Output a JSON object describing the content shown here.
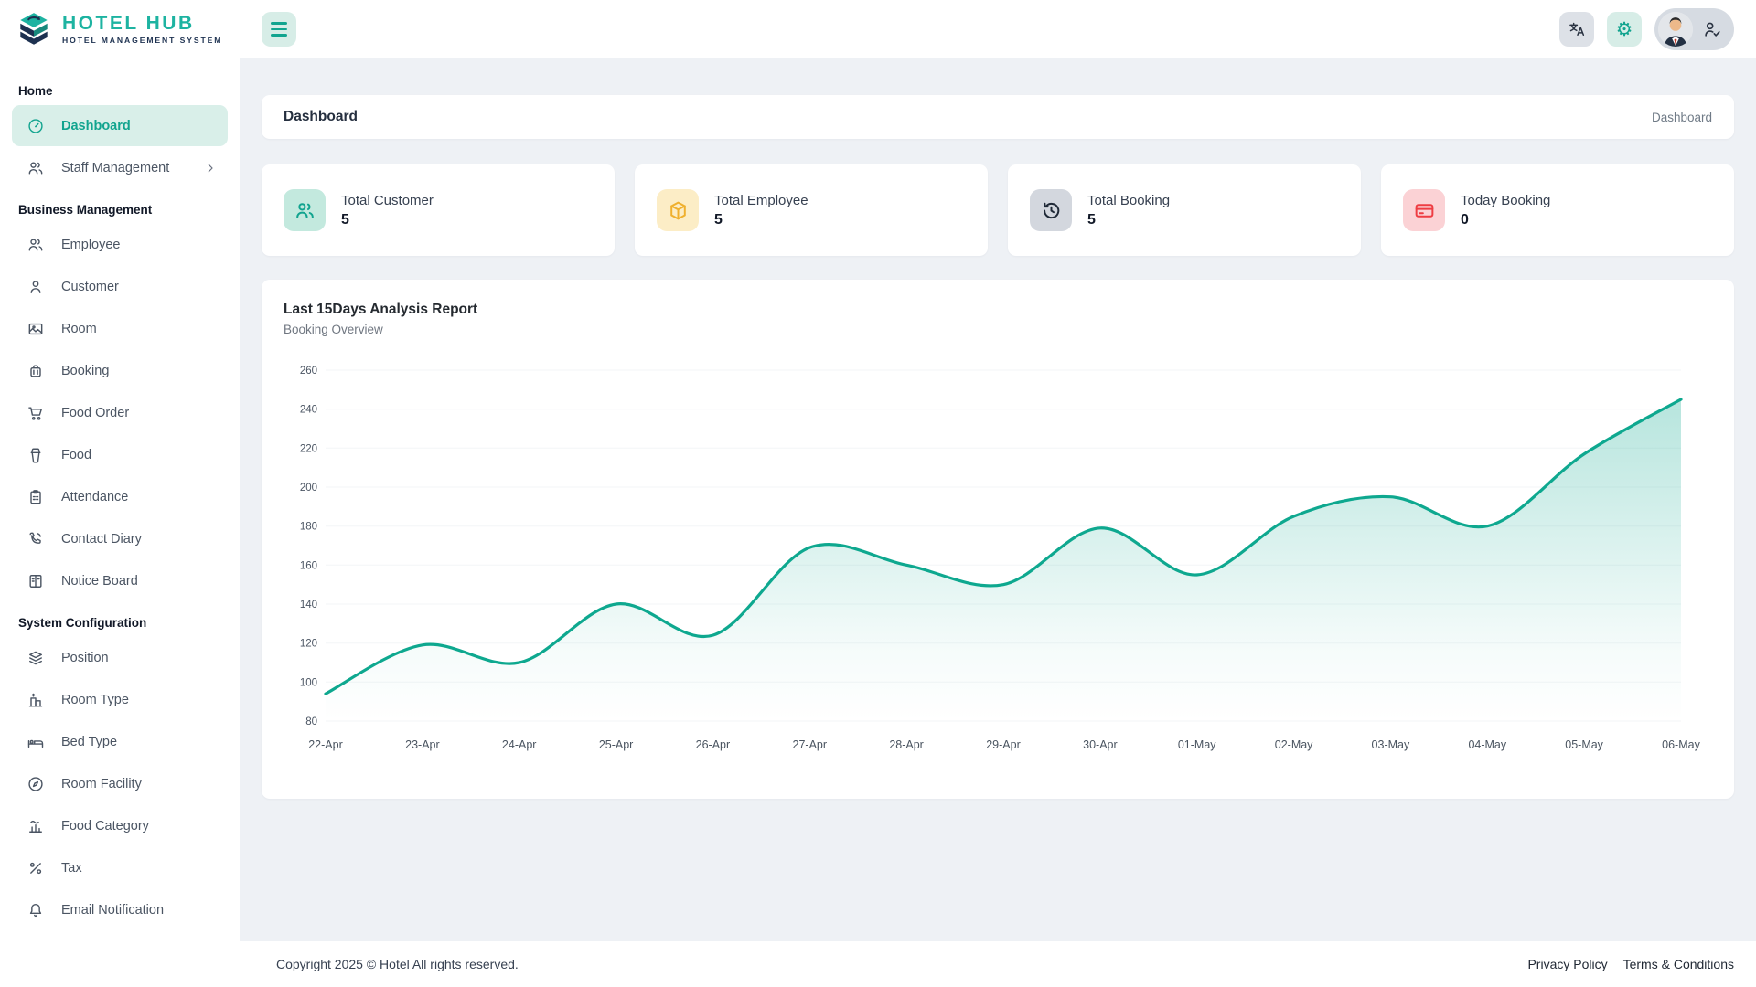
{
  "app": {
    "logo_title": "HOTEL HUB",
    "logo_subtitle": "HOTEL MANAGEMENT SYSTEM"
  },
  "header": {
    "buttons": [
      {
        "name": "sidebar-toggle",
        "icon": "hamburger-icon"
      },
      {
        "name": "translate",
        "icon": "translate-icon"
      },
      {
        "name": "settings",
        "icon": "gear-icon"
      },
      {
        "name": "profile",
        "icon": "user-check-icon"
      }
    ]
  },
  "sidebar": {
    "sections": [
      {
        "label": "Home",
        "items": [
          {
            "label": "Dashboard",
            "icon": "gauge-icon",
            "active": true
          },
          {
            "label": "Staff Management",
            "icon": "users-icon",
            "chevron": true
          }
        ]
      },
      {
        "label": "Business Management",
        "items": [
          {
            "label": "Employee",
            "icon": "users-icon"
          },
          {
            "label": "Customer",
            "icon": "user-icon"
          },
          {
            "label": "Room",
            "icon": "room-photo-icon"
          },
          {
            "label": "Booking",
            "icon": "luggage-icon"
          },
          {
            "label": "Food Order",
            "icon": "cart-icon"
          },
          {
            "label": "Food",
            "icon": "cup-icon"
          },
          {
            "label": "Attendance",
            "icon": "clipboard-icon"
          },
          {
            "label": "Contact Diary",
            "icon": "phone-icon"
          },
          {
            "label": "Notice Board",
            "icon": "board-icon"
          }
        ]
      },
      {
        "label": "System Configuration",
        "items": [
          {
            "label": "Position",
            "icon": "layers-icon"
          },
          {
            "label": "Room Type",
            "icon": "building-icon"
          },
          {
            "label": "Bed Type",
            "icon": "bed-icon"
          },
          {
            "label": "Room Facility",
            "icon": "compass-icon"
          },
          {
            "label": "Food Category",
            "icon": "category-chart-icon"
          },
          {
            "label": "Tax",
            "icon": "percent-icon"
          },
          {
            "label": "Email Notification",
            "icon": "bell-icon"
          }
        ]
      }
    ]
  },
  "page": {
    "title": "Dashboard",
    "breadcrumb": "Dashboard"
  },
  "cards": [
    {
      "label": "Total Customer",
      "value": "5",
      "icon": "customers-icon",
      "icon_color": "#12a48f",
      "icon_bg": "#c3e9de"
    },
    {
      "label": "Total Employee",
      "value": "5",
      "icon": "package-icon",
      "icon_color": "#efb02e",
      "icon_bg": "#fcedc6"
    },
    {
      "label": "Total Booking",
      "value": "5",
      "icon": "history-clock-icon",
      "icon_color": "#1f2937",
      "icon_bg": "#d3d7de"
    },
    {
      "label": "Today Booking",
      "value": "0",
      "icon": "credit-card-icon",
      "icon_color": "#ee3d43",
      "icon_bg": "#fbd2d5"
    }
  ],
  "chart_data": {
    "type": "area",
    "title": "Last 15Days Analysis Report",
    "subtitle": "Booking Overview",
    "x": [
      "22-Apr",
      "23-Apr",
      "24-Apr",
      "25-Apr",
      "26-Apr",
      "27-Apr",
      "28-Apr",
      "29-Apr",
      "30-Apr",
      "01-May",
      "02-May",
      "03-May",
      "04-May",
      "05-May",
      "06-May"
    ],
    "series": [
      {
        "name": "Booking",
        "values": [
          94,
          119,
          110,
          140,
          124,
          169,
          160,
          150,
          179,
          155,
          185,
          195,
          180,
          217,
          245
        ]
      }
    ],
    "ylim": [
      80,
      260
    ],
    "yticks": [
      80,
      100,
      120,
      140,
      160,
      180,
      200,
      220,
      240,
      260
    ],
    "grid": "faint-horizontal",
    "legend": "none",
    "line_color": "#0ea88f",
    "fill": "gradient-teal-to-transparent"
  },
  "footer": {
    "copyright": "Copyright 2025 © Hotel All rights reserved.",
    "links": [
      "Privacy Policy",
      "Terms & Conditions"
    ]
  }
}
